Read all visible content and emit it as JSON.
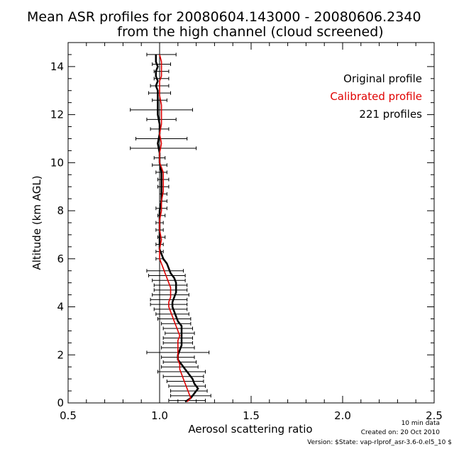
{
  "chart_data": {
    "type": "line",
    "title_line1": "Mean ASR profiles for 20080604.143000 - 20080606.2340",
    "title_line2": "from the high channel (cloud screened)",
    "xlabel": "Aerosol scattering ratio",
    "ylabel": "Altitude (km AGL)",
    "xlim": [
      0.5,
      2.5
    ],
    "ylim": [
      0,
      15
    ],
    "xticks": [
      0.5,
      1.0,
      1.5,
      2.0,
      2.5
    ],
    "xtick_labels": [
      "0.5",
      "1.0",
      "1.5",
      "2.0",
      "2.5"
    ],
    "yticks": [
      0,
      2,
      4,
      6,
      8,
      10,
      12,
      14
    ],
    "ytick_labels": [
      "0",
      "2",
      "4",
      "6",
      "8",
      "10",
      "12",
      "14"
    ],
    "reference_line_x": 1.0,
    "legend_placement": "top-right",
    "legend": {
      "original": "Original profile",
      "calibrated": "Calibrated profile",
      "count": "221 profiles"
    },
    "series": [
      {
        "name": "Original profile",
        "color": "#000000",
        "x": [
          1.14,
          1.17,
          1.19,
          1.21,
          1.19,
          1.18,
          1.16,
          1.14,
          1.12,
          1.1,
          1.1,
          1.11,
          1.12,
          1.12,
          1.12,
          1.12,
          1.12,
          1.1,
          1.09,
          1.08,
          1.07,
          1.07,
          1.08,
          1.09,
          1.09,
          1.09,
          1.08,
          1.06,
          1.05,
          1.04,
          1.02,
          1.01,
          1.0,
          1.0,
          1.0,
          1.0,
          1.0,
          1.01,
          1.01,
          1.01,
          1.01,
          1.0,
          1.0,
          0.99,
          1.0,
          1.0,
          0.99,
          0.99,
          0.99,
          0.99,
          0.98,
          0.99,
          0.98,
          0.98,
          0.99,
          0.98,
          0.98
        ],
        "y": [
          0.05,
          0.2,
          0.4,
          0.6,
          0.8,
          1.0,
          1.2,
          1.4,
          1.6,
          1.8,
          2.0,
          2.2,
          2.4,
          2.6,
          2.8,
          3.0,
          3.2,
          3.4,
          3.6,
          3.8,
          4.0,
          4.2,
          4.4,
          4.6,
          4.8,
          5.0,
          5.2,
          5.4,
          5.6,
          5.8,
          6.0,
          6.2,
          6.4,
          6.8,
          7.2,
          7.6,
          8.0,
          8.4,
          8.8,
          9.2,
          9.6,
          10.0,
          10.4,
          10.8,
          11.2,
          11.6,
          12.0,
          12.4,
          12.8,
          13.0,
          13.2,
          13.4,
          13.6,
          13.8,
          14.0,
          14.2,
          14.5
        ]
      },
      {
        "name": "Calibrated profile",
        "color": "#e00000",
        "x": [
          1.15,
          1.17,
          1.16,
          1.15,
          1.14,
          1.13,
          1.12,
          1.11,
          1.11,
          1.1,
          1.1,
          1.1,
          1.1,
          1.1,
          1.11,
          1.1,
          1.09,
          1.08,
          1.07,
          1.06,
          1.05,
          1.05,
          1.06,
          1.06,
          1.06,
          1.05,
          1.04,
          1.03,
          1.02,
          1.01,
          1.0,
          1.0,
          1.0,
          1.01,
          1.0,
          1.0,
          1.01,
          1.01,
          1.02,
          1.02,
          1.02,
          1.0,
          1.0,
          1.01,
          1.0,
          1.01,
          1.01,
          1.01,
          1.0,
          1.0,
          1.0,
          1.0,
          1.01,
          1.01,
          1.01,
          1.01,
          1.0
        ],
        "y": [
          0.05,
          0.2,
          0.4,
          0.6,
          0.8,
          1.0,
          1.2,
          1.4,
          1.6,
          1.8,
          2.0,
          2.2,
          2.4,
          2.6,
          2.8,
          3.0,
          3.2,
          3.4,
          3.6,
          3.8,
          4.0,
          4.2,
          4.4,
          4.6,
          4.8,
          5.0,
          5.2,
          5.4,
          5.6,
          5.8,
          6.0,
          6.2,
          6.4,
          6.8,
          7.2,
          7.6,
          8.0,
          8.4,
          8.8,
          9.2,
          9.6,
          10.0,
          10.4,
          10.8,
          11.2,
          11.6,
          12.0,
          12.4,
          12.8,
          13.0,
          13.2,
          13.4,
          13.6,
          13.8,
          14.0,
          14.2,
          14.5
        ]
      }
    ],
    "error_bars": {
      "color": "#000000",
      "y": [
        0.1,
        0.3,
        0.5,
        0.7,
        0.9,
        1.1,
        1.3,
        1.5,
        1.7,
        1.9,
        2.1,
        2.3,
        2.5,
        2.7,
        2.9,
        3.1,
        3.3,
        3.5,
        3.7,
        3.9,
        4.1,
        4.3,
        4.5,
        4.7,
        4.9,
        5.1,
        5.3,
        5.5,
        6.0,
        6.3,
        6.6,
        6.9,
        7.2,
        7.5,
        7.8,
        8.1,
        8.4,
        8.7,
        9.0,
        9.3,
        9.6,
        9.9,
        10.2,
        10.6,
        11.0,
        11.4,
        11.8,
        12.2,
        12.6,
        12.9,
        13.2,
        13.5,
        13.8,
        14.1,
        14.5
      ],
      "x": [
        1.15,
        1.17,
        1.16,
        1.15,
        1.14,
        1.13,
        1.12,
        1.11,
        1.11,
        1.1,
        1.1,
        1.1,
        1.1,
        1.1,
        1.11,
        1.1,
        1.09,
        1.08,
        1.07,
        1.06,
        1.05,
        1.05,
        1.06,
        1.06,
        1.06,
        1.05,
        1.04,
        1.03,
        1.0,
        1.0,
        1.0,
        1.01,
        1.0,
        1.0,
        1.01,
        1.01,
        1.02,
        1.02,
        1.02,
        1.02,
        1.01,
        1.0,
        1.0,
        1.02,
        1.01,
        1.0,
        1.01,
        1.01,
        1.0,
        1.0,
        1.0,
        1.01,
        1.01,
        1.01,
        1.01
      ],
      "err": [
        0.1,
        0.11,
        0.1,
        0.1,
        0.1,
        0.11,
        0.13,
        0.1,
        0.09,
        0.09,
        0.17,
        0.09,
        0.08,
        0.08,
        0.08,
        0.08,
        0.08,
        0.09,
        0.09,
        0.09,
        0.1,
        0.1,
        0.1,
        0.09,
        0.09,
        0.09,
        0.1,
        0.1,
        0.02,
        0.02,
        0.02,
        0.02,
        0.02,
        0.02,
        0.02,
        0.03,
        0.02,
        0.02,
        0.03,
        0.03,
        0.03,
        0.04,
        0.03,
        0.18,
        0.14,
        0.05,
        0.08,
        0.17,
        0.04,
        0.06,
        0.05,
        0.04,
        0.04,
        0.05,
        0.08
      ]
    }
  },
  "footer": {
    "data_note": "10 min data",
    "created": "Created on: 20 Oct 2010",
    "version": "Version: $State: vap-rlprof_asr-3.6-0.el5_10 $"
  }
}
